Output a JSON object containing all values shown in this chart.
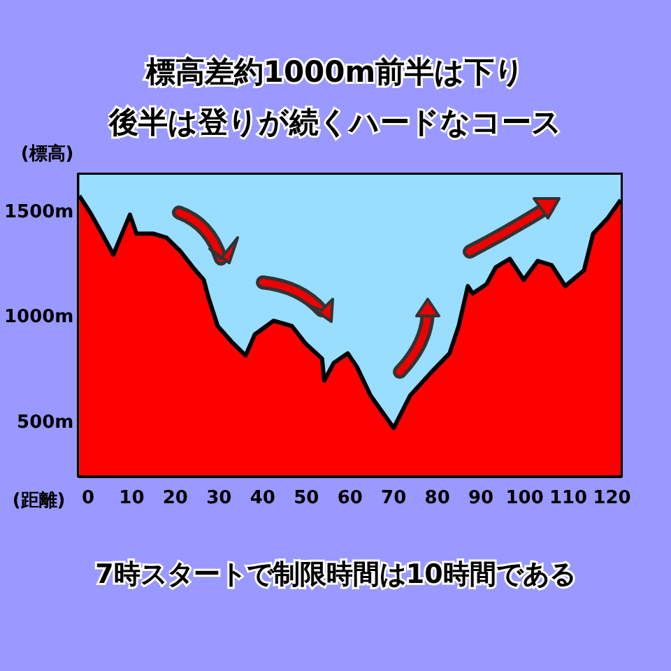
{
  "chart_data": {
    "type": "area",
    "title": "標高差約1000m前半は下り",
    "subtitle": "後半は登りが続くハードなコース",
    "ylabel": "(標高)",
    "xlabel": "(距離)",
    "annotations": [
      "7時スタートで制限時間は10時間である"
    ],
    "x": [
      -2,
      0.5,
      3.2,
      5.8,
      7.4,
      9.6,
      11.1,
      14.9,
      18,
      21.2,
      24.4,
      26.5,
      27.6,
      29.7,
      32.9,
      36.1,
      38.2,
      42.5,
      46.7,
      49.9,
      53.6,
      54.1,
      56.3,
      59.5,
      61.6,
      64.7,
      70,
      73.8,
      78.6,
      82.8,
      84.9,
      87,
      88.1,
      91.3,
      93.4,
      96.6,
      99.8,
      103,
      106.2,
      109.3,
      113.6,
      115.7,
      118.9,
      122
    ],
    "series": [
      {
        "color": "#ff0000",
        "values": [
          1580,
          1500,
          1400,
          1300,
          1380,
          1490,
          1400,
          1400,
          1380,
          1315,
          1230,
          1180,
          1095,
          960,
          885,
          820,
          920,
          985,
          960,
          875,
          805,
          700,
          785,
          830,
          765,
          630,
          475,
          630,
          740,
          830,
          960,
          1150,
          1115,
          1160,
          1240,
          1280,
          1180,
          1270,
          1250,
          1150,
          1225,
          1400,
          1470,
          1560
        ]
      }
    ],
    "xlim": [
      -2,
      122
    ],
    "ylim": [
      250,
      1680
    ],
    "xticks": [
      0,
      10,
      20,
      30,
      40,
      50,
      60,
      70,
      80,
      90,
      100,
      110,
      120
    ],
    "yticks": [
      {
        "value": 500,
        "label": "500m"
      },
      {
        "value": 1000,
        "label": "1000m"
      },
      {
        "value": 1500,
        "label": "1500m"
      }
    ],
    "bands": [
      {
        "axis": "y",
        "from": 250,
        "to": 1680,
        "color": "#99ddff"
      }
    ]
  }
}
